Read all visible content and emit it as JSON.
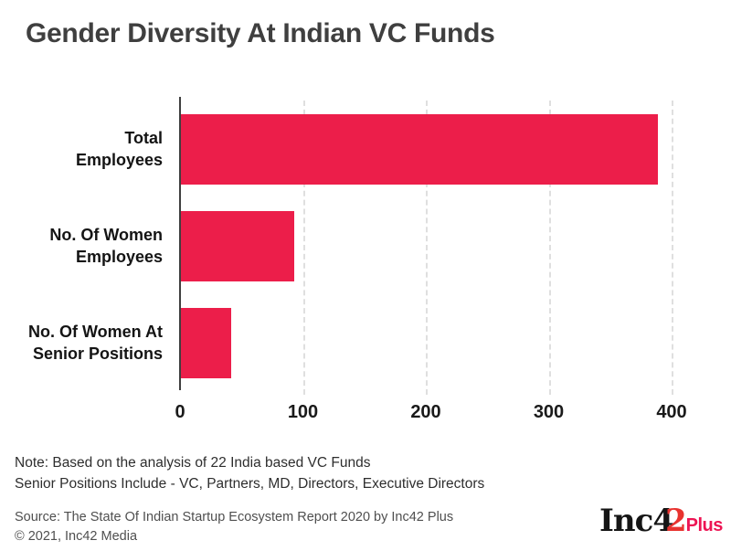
{
  "page": {
    "title": "Gender Diversity At Indian VC Funds"
  },
  "chart_data": {
    "type": "bar",
    "orientation": "horizontal",
    "title": "Gender Diversity At Indian VC Funds",
    "categories": [
      "Total Employees",
      "No. Of Women Employees",
      "No. Of Women At Senior Positions"
    ],
    "category_lines": [
      [
        "Total",
        "Employees"
      ],
      [
        "No. Of Women",
        "Employees"
      ],
      [
        "No. Of Women At",
        "Senior Positions"
      ]
    ],
    "values": [
      388,
      92,
      41
    ],
    "xlim": [
      0,
      400
    ],
    "x_ticks": [
      "0",
      "100",
      "200",
      "300",
      "400"
    ],
    "grid": "vertical-dashed",
    "legend": "none",
    "bar_color": "#EC1E4A"
  },
  "footnotes": {
    "note_line1": "Note: Based on the analysis of 22 India based VC Funds",
    "note_line2": "Senior Positions Include - VC, Partners, MD, Directors, Executive Directors",
    "source_line": "Source: The State Of Indian Startup Ecosystem Report 2020 by Inc42 Plus",
    "copyright": "© 2021, Inc42 Media"
  },
  "logo": {
    "black_part": "Inc4",
    "red_digit": "2",
    "red_suffix": "Plus"
  },
  "colors": {
    "accent": "#EC1E4A",
    "title_text": "#3F3F3F",
    "axis": "#3F3F3F",
    "gridline": "#DFDFDF",
    "label_text": "#141414",
    "muted_text": "#4F4F4F"
  }
}
